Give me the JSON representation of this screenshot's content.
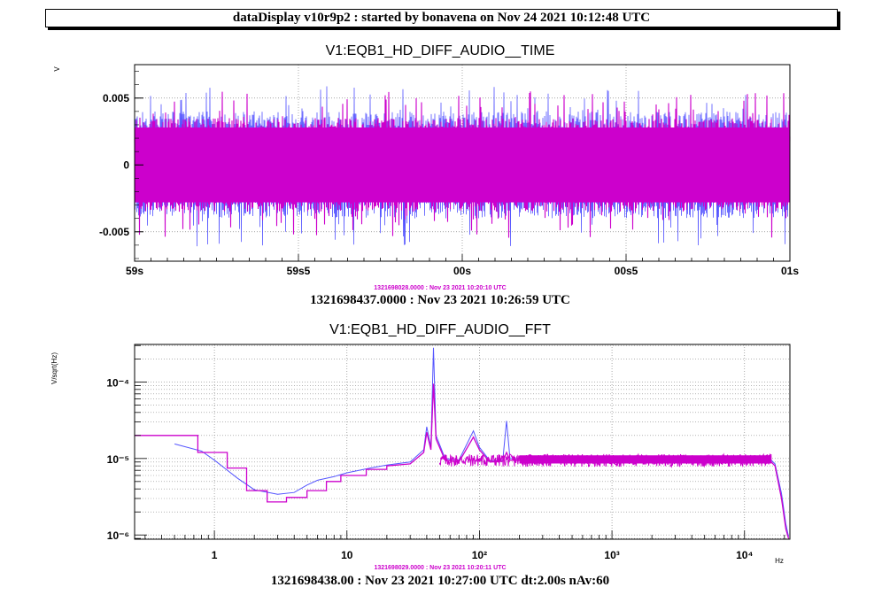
{
  "header": {
    "title": "dataDisplay v10r9p2 : started by bonavena on Nov 24 2021 10:12:48 UTC"
  },
  "colors": {
    "series1": "#5555ff",
    "series2": "#cc00cc",
    "frame": "#000000",
    "grid": "#888888"
  },
  "chart_data": [
    {
      "type": "line",
      "title": "V1:EQB1_HD_DIFF_AUDIO__TIME",
      "ylabel": "V",
      "xlabel": "",
      "ylim": [
        -0.0072,
        0.0075
      ],
      "x_ticks": [
        "59s",
        "59s5",
        "00s",
        "00s5",
        "01s"
      ],
      "y_ticks": [
        {
          "value": 0.005,
          "label": "0.005"
        },
        {
          "value": 0,
          "label": "0"
        },
        {
          "value": -0.005,
          "label": "-0.005"
        }
      ],
      "grid": true,
      "series": [
        {
          "color": "#5555ff",
          "envelope": [
            -0.004,
            0.004
          ],
          "peak_range": [
            -0.006,
            0.0061
          ]
        },
        {
          "color": "#cc00cc",
          "envelope": [
            -0.0035,
            0.0035
          ],
          "peak_range": [
            -0.0055,
            0.0055
          ]
        }
      ],
      "ref_time": "1321698028.0000 : Nov 23 2021 10:20:10 UTC",
      "footer": "1321698437.0000 : Nov 23 2021 10:26:59 UTC"
    },
    {
      "type": "line",
      "title": "V1:EQB1_HD_DIFF_AUDIO__FFT",
      "ylabel": "V/sqrt(Hz)",
      "xlabel": "Hz",
      "xscale": "log",
      "yscale": "log",
      "xlim": [
        0.25,
        22000
      ],
      "ylim": [
        8.8e-07,
        0.00031
      ],
      "x_ticks": [
        {
          "value": 1,
          "label": "1"
        },
        {
          "value": 10,
          "label": "10"
        },
        {
          "value": 100,
          "label": "10²"
        },
        {
          "value": 1000,
          "label": "10³"
        },
        {
          "value": 10000,
          "label": "10⁴"
        }
      ],
      "y_ticks": [
        {
          "value": 0.0001,
          "label": "10⁻⁴"
        },
        {
          "value": 1e-05,
          "label": "10⁻⁵"
        },
        {
          "value": 1e-06,
          "label": "10⁻⁶"
        }
      ],
      "grid": true,
      "series": [
        {
          "color": "#5555ff",
          "points": [
            [
              0.5,
              1.55e-05
            ],
            [
              0.8,
              1.25e-05
            ],
            [
              1.0,
              9.5e-06
            ],
            [
              1.5,
              5.5e-06
            ],
            [
              2.0,
              3.9e-06
            ],
            [
              3.0,
              3.4e-06
            ],
            [
              4.0,
              3.6e-06
            ],
            [
              5.0,
              4.5e-06
            ],
            [
              6.0,
              5.2e-06
            ],
            [
              8.0,
              5.8e-06
            ],
            [
              10.0,
              6.5e-06
            ],
            [
              15.0,
              7.5e-06
            ],
            [
              20.0,
              8.2e-06
            ],
            [
              30.0,
              9e-06
            ],
            [
              38.0,
              1.3e-05
            ],
            [
              40.0,
              2.6e-05
            ],
            [
              43.0,
              1.4e-05
            ],
            [
              45.0,
              0.00028
            ],
            [
              47.0,
              2e-05
            ],
            [
              55.0,
              1e-05
            ],
            [
              70.0,
              9.5e-06
            ],
            [
              90.0,
              2.3e-05
            ],
            [
              100.0,
              1.4e-05
            ],
            [
              120.0,
              9.3e-06
            ],
            [
              150.0,
              9.5e-06
            ],
            [
              160.0,
              3.1e-05
            ],
            [
              170.0,
              1e-05
            ],
            [
              300.0,
              9.5e-06
            ],
            [
              1000.0,
              9.8e-06
            ],
            [
              5000.0,
              1e-05
            ],
            [
              15000.0,
              1.05e-05
            ],
            [
              17000.0,
              8.5e-06
            ],
            [
              19000.0,
              3.5e-06
            ],
            [
              20500.0,
              1.4e-06
            ],
            [
              21500.0,
              9.5e-07
            ]
          ]
        },
        {
          "color": "#cc00cc",
          "points": [
            [
              0.25,
              2e-05
            ],
            [
              0.75,
              2e-05
            ],
            [
              0.75,
              1.2e-05
            ],
            [
              1.25,
              1.2e-05
            ],
            [
              1.25,
              7.5e-06
            ],
            [
              1.75,
              7.5e-06
            ],
            [
              1.75,
              3.8e-06
            ],
            [
              2.5,
              3.8e-06
            ],
            [
              2.5,
              2.7e-06
            ],
            [
              3.5,
              2.7e-06
            ],
            [
              3.5,
              3.1e-06
            ],
            [
              5.0,
              3.1e-06
            ],
            [
              5.0,
              3.8e-06
            ],
            [
              7.0,
              3.8e-06
            ],
            [
              7.0,
              5e-06
            ],
            [
              9.0,
              5e-06
            ],
            [
              9.0,
              6e-06
            ],
            [
              14.0,
              6e-06
            ],
            [
              14.0,
              7.2e-06
            ],
            [
              20.0,
              7.2e-06
            ],
            [
              20.0,
              8e-06
            ],
            [
              30.0,
              8.5e-06
            ],
            [
              38.0,
              1.2e-05
            ],
            [
              40.0,
              2.2e-05
            ],
            [
              43.0,
              1.3e-05
            ],
            [
              45.0,
              9.5e-05
            ],
            [
              47.0,
              1.8e-05
            ],
            [
              55.0,
              9.5e-06
            ],
            [
              70.0,
              9e-06
            ],
            [
              90.0,
              1.9e-05
            ],
            [
              100.0,
              1.3e-05
            ],
            [
              120.0,
              9e-06
            ],
            [
              150.0,
              9.2e-06
            ],
            [
              160.0,
              1.2e-05
            ],
            [
              170.0,
              9.5e-06
            ],
            [
              300.0,
              9.2e-06
            ],
            [
              1000.0,
              9.5e-06
            ],
            [
              5000.0,
              9.8e-06
            ],
            [
              15000.0,
              1e-05
            ],
            [
              17000.0,
              8e-06
            ],
            [
              19000.0,
              3e-06
            ],
            [
              20500.0,
              1.2e-06
            ],
            [
              21500.0,
              9e-07
            ]
          ]
        }
      ],
      "ref_time": "1321698029.0000 : Nov 23 2021 10:20:11 UTC",
      "footer": "1321698438.00 : Nov 23 2021 10:27:00 UTC dt:2.00s nAv:60"
    }
  ]
}
